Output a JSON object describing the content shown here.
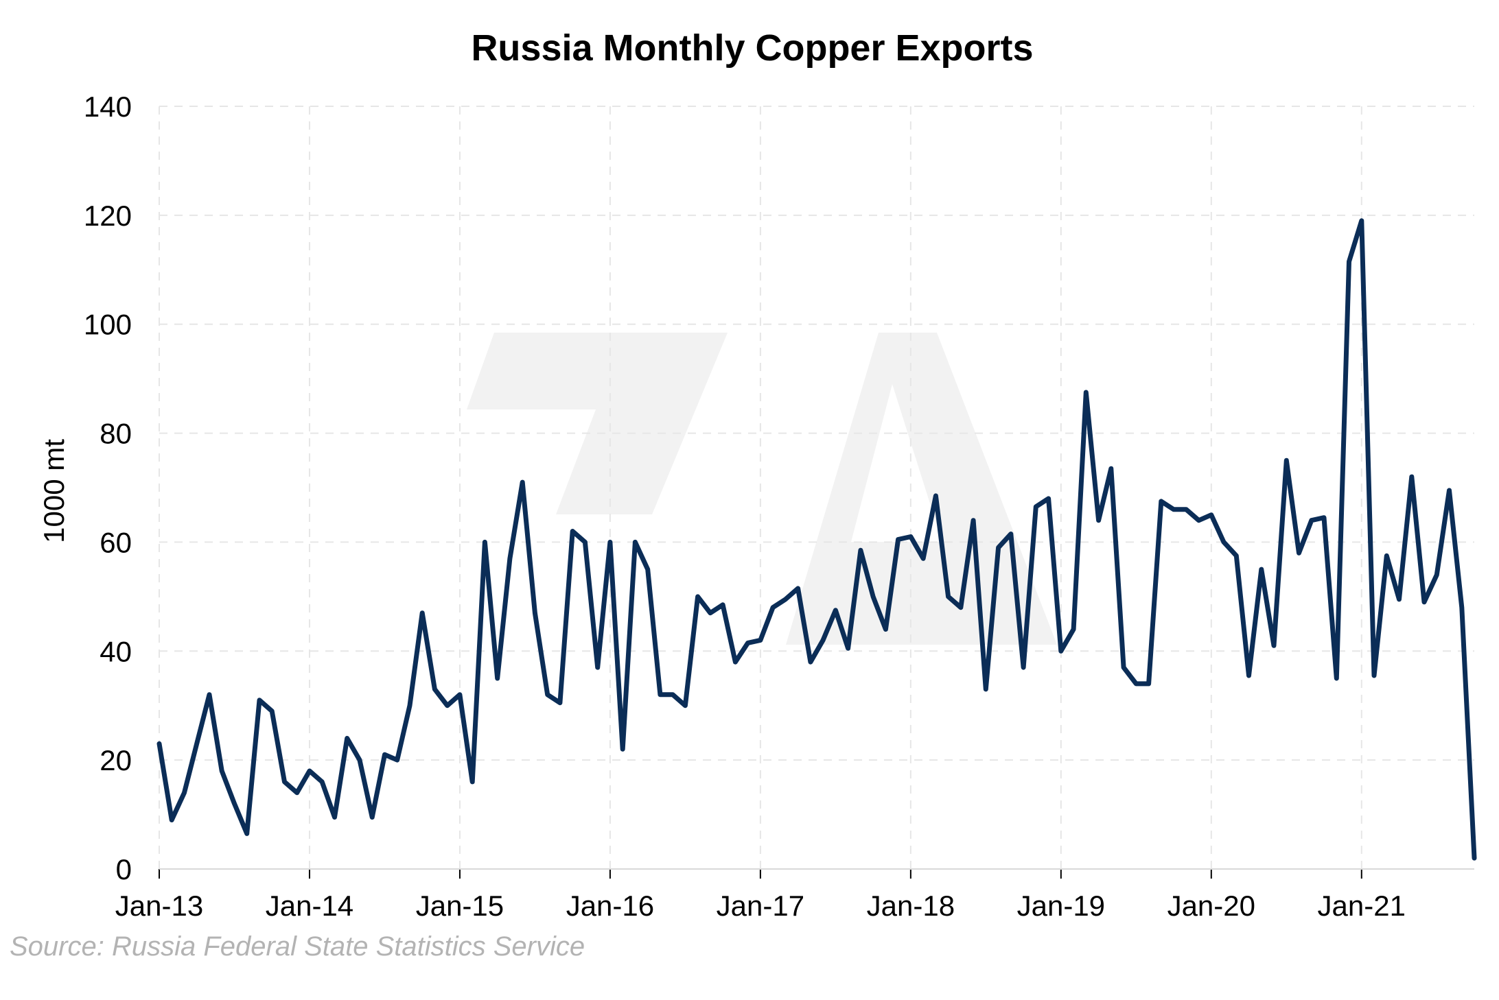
{
  "colors": {
    "series": "#0b2d57",
    "grid": "#e6e6e6",
    "watermark": "#f2f2f2",
    "source": "#b3b3b3"
  },
  "source": "Source: Russia Federal State Statistics Service",
  "chart_data": {
    "type": "line",
    "title": "Russia Monthly Copper Exports",
    "xlabel": "",
    "ylabel": "1000 mt",
    "ylim": [
      0,
      140
    ],
    "yticks": [
      0,
      20,
      40,
      60,
      80,
      100,
      120,
      140
    ],
    "xlim": [
      "2013-01",
      "2021-10"
    ],
    "xticks": [
      {
        "date": "2013-01",
        "label": "Jan-13"
      },
      {
        "date": "2014-01",
        "label": "Jan-14"
      },
      {
        "date": "2015-01",
        "label": "Jan-15"
      },
      {
        "date": "2016-01",
        "label": "Jan-16"
      },
      {
        "date": "2017-01",
        "label": "Jan-17"
      },
      {
        "date": "2018-01",
        "label": "Jan-18"
      },
      {
        "date": "2019-01",
        "label": "Jan-19"
      },
      {
        "date": "2020-01",
        "label": "Jan-20"
      },
      {
        "date": "2021-01",
        "label": "Jan-21"
      }
    ],
    "grid": true,
    "legend": "none",
    "series": [
      {
        "x": [
          "2013-01",
          "2013-02",
          "2013-03",
          "2013-04",
          "2013-05",
          "2013-06",
          "2013-07",
          "2013-08",
          "2013-09",
          "2013-10",
          "2013-11",
          "2013-12",
          "2014-01",
          "2014-02",
          "2014-03",
          "2014-04",
          "2014-05",
          "2014-06",
          "2014-07",
          "2014-08",
          "2014-09",
          "2014-10",
          "2014-11",
          "2014-12",
          "2015-01",
          "2015-02",
          "2015-03",
          "2015-04",
          "2015-05",
          "2015-06",
          "2015-07",
          "2015-08",
          "2015-09",
          "2015-10",
          "2015-11",
          "2015-12",
          "2016-01",
          "2016-02",
          "2016-03",
          "2016-04",
          "2016-05",
          "2016-06",
          "2016-07",
          "2016-08",
          "2016-09",
          "2016-10",
          "2016-11",
          "2016-12",
          "2017-01",
          "2017-02",
          "2017-03",
          "2017-04",
          "2017-05",
          "2017-06",
          "2017-07",
          "2017-08",
          "2017-09",
          "2017-10",
          "2017-11",
          "2017-12",
          "2018-01",
          "2018-02",
          "2018-03",
          "2018-04",
          "2018-05",
          "2018-06",
          "2018-07",
          "2018-08",
          "2018-09",
          "2018-10",
          "2018-11",
          "2018-12",
          "2019-01",
          "2019-02",
          "2019-03",
          "2019-04",
          "2019-05",
          "2019-06",
          "2019-07",
          "2019-08",
          "2019-09",
          "2019-10",
          "2019-11",
          "2019-12",
          "2020-01",
          "2020-02",
          "2020-03",
          "2020-04",
          "2020-05",
          "2020-06",
          "2020-07",
          "2020-08",
          "2020-09",
          "2020-10",
          "2020-11",
          "2020-12",
          "2021-01",
          "2021-02",
          "2021-03",
          "2021-04",
          "2021-05",
          "2021-06",
          "2021-07",
          "2021-08",
          "2021-09",
          "2021-10"
        ],
        "values": [
          23,
          9,
          14,
          23,
          32,
          18,
          12,
          6.5,
          31,
          29,
          16,
          14,
          18,
          16,
          9.5,
          24,
          20,
          9.5,
          21,
          20,
          30,
          47,
          33,
          30,
          32,
          16,
          60,
          35,
          57,
          71,
          47,
          32,
          30.5,
          62,
          60,
          37,
          60,
          22,
          60,
          55,
          32,
          32,
          30,
          50,
          47,
          48.5,
          38,
          41.5,
          42,
          48,
          49.5,
          51.5,
          38,
          42,
          47.5,
          40.5,
          58.5,
          50,
          44,
          60.5,
          61,
          57,
          68.5,
          50,
          48,
          64,
          33,
          59,
          61.5,
          37,
          66.5,
          68,
          40,
          44,
          87.5,
          64,
          73.5,
          37,
          34,
          34,
          67.5,
          66,
          66,
          64,
          65,
          60,
          57.5,
          35.5,
          55,
          41,
          75,
          58,
          64,
          64.5,
          35,
          111.5,
          119,
          35.5,
          57.5,
          49.5,
          72,
          49,
          54,
          69.5,
          48,
          2
        ]
      }
    ]
  }
}
